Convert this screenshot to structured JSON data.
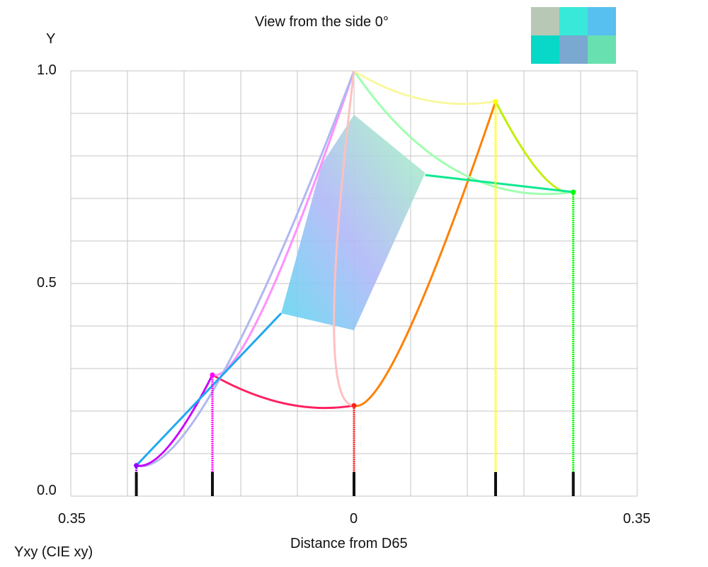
{
  "header": {
    "view_title": "View from the side 0°",
    "y_axis_title": "Y",
    "x_axis_title": "Distance from D65",
    "space_caption": "Yxy (CIE xy)"
  },
  "ticks": {
    "y": [
      "1.0",
      "0.5",
      "0.0"
    ],
    "x": [
      "0.35",
      "0",
      "0.35"
    ]
  },
  "thumbnail": {
    "tiles": [
      "#b8c8b4",
      "#38e8d8",
      "#58c0f0",
      "#08d8c8",
      "#7aa8d0",
      "#68e0b0"
    ]
  },
  "chart_data": {
    "type": "line",
    "title": "View from the side 0°",
    "xlabel": "Distance from D65",
    "ylabel": "Y",
    "xlim": [
      -0.35,
      0.35
    ],
    "ylim": [
      0,
      1
    ],
    "grid": true,
    "primaries": [
      {
        "name": "violet",
        "color": "#9000ff",
        "x": -0.269,
        "y": 0.072
      },
      {
        "name": "magenta",
        "color": "#ff00ff",
        "x": -0.175,
        "y": 0.285
      },
      {
        "name": "red",
        "color": "#ff2020",
        "x": 0.0,
        "y": 0.213
      },
      {
        "name": "yellow",
        "color": "#ffff00",
        "x": 0.175,
        "y": 0.928
      },
      {
        "name": "green",
        "color": "#00ff00",
        "x": 0.271,
        "y": 0.715
      },
      {
        "name": "white",
        "color": "#ffffff",
        "x": 0.0,
        "y": 1.0
      }
    ],
    "edges": [
      {
        "from": "magenta",
        "to": "red",
        "color": "#ff2060"
      },
      {
        "from": "red",
        "to": "yellow",
        "color": "#ff8000"
      },
      {
        "from": "yellow",
        "to": "green",
        "color": "#c0f000"
      },
      {
        "from": "green",
        "to": "white",
        "color": "#a0ffb0"
      },
      {
        "from": "yellow",
        "to": "white",
        "color": "#f8f8a0"
      },
      {
        "from": "magenta",
        "to": "white",
        "color": "#ff90ff"
      },
      {
        "from": "violet",
        "to": "white",
        "color": "#b0b8f0"
      },
      {
        "from": "violet",
        "to": "magenta",
        "color": "#c800ff"
      },
      {
        "from": "red",
        "to": "white",
        "color": "#ffc0c0"
      }
    ],
    "inner_solid": {
      "color": "#80e8f0",
      "points": [
        [
          -0.09,
          0.43
        ],
        [
          0.0,
          0.39
        ],
        [
          0.088,
          0.76
        ],
        [
          0.0,
          0.897
        ],
        [
          -0.04,
          0.78
        ]
      ]
    },
    "inner_edges": [
      {
        "points": [
          [
            0.088,
            0.755
          ],
          [
            0.271,
            0.715
          ]
        ],
        "color": "#10e890"
      },
      {
        "points": [
          [
            -0.09,
            0.43
          ],
          [
            -0.269,
            0.072
          ]
        ],
        "color": "#20a8f0"
      }
    ]
  }
}
